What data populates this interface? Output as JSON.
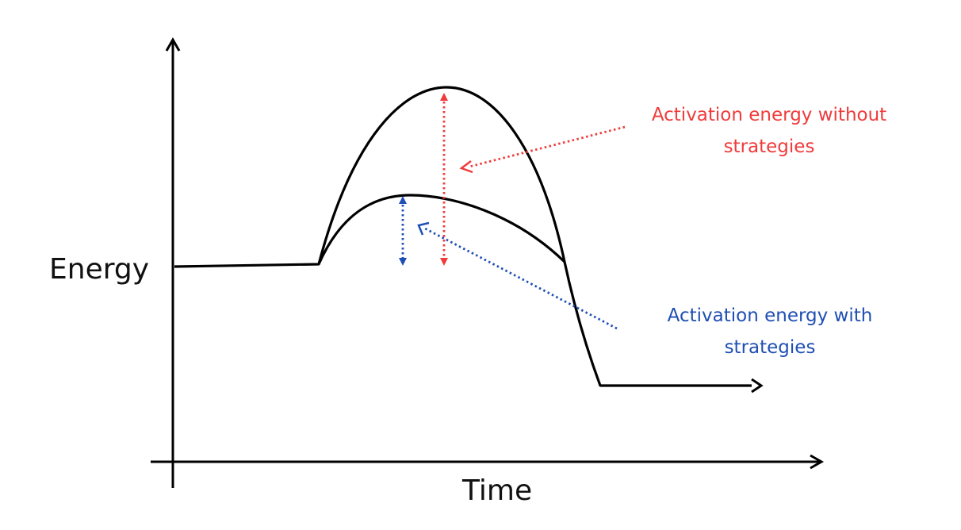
{
  "diagram": {
    "axes": {
      "x_label": "Time",
      "y_label": "Energy"
    },
    "annotations": {
      "without": {
        "line1": "Activation energy without",
        "line2": "strategies",
        "color": "#f03b3b"
      },
      "with": {
        "line1": "Activation energy with",
        "line2": "strategies",
        "color": "#1f4fb4"
      }
    },
    "curves": [
      {
        "name": "without-strategies-path",
        "peak": "high"
      },
      {
        "name": "with-strategies-path",
        "peak": "low"
      }
    ],
    "line_color": "#000000"
  }
}
